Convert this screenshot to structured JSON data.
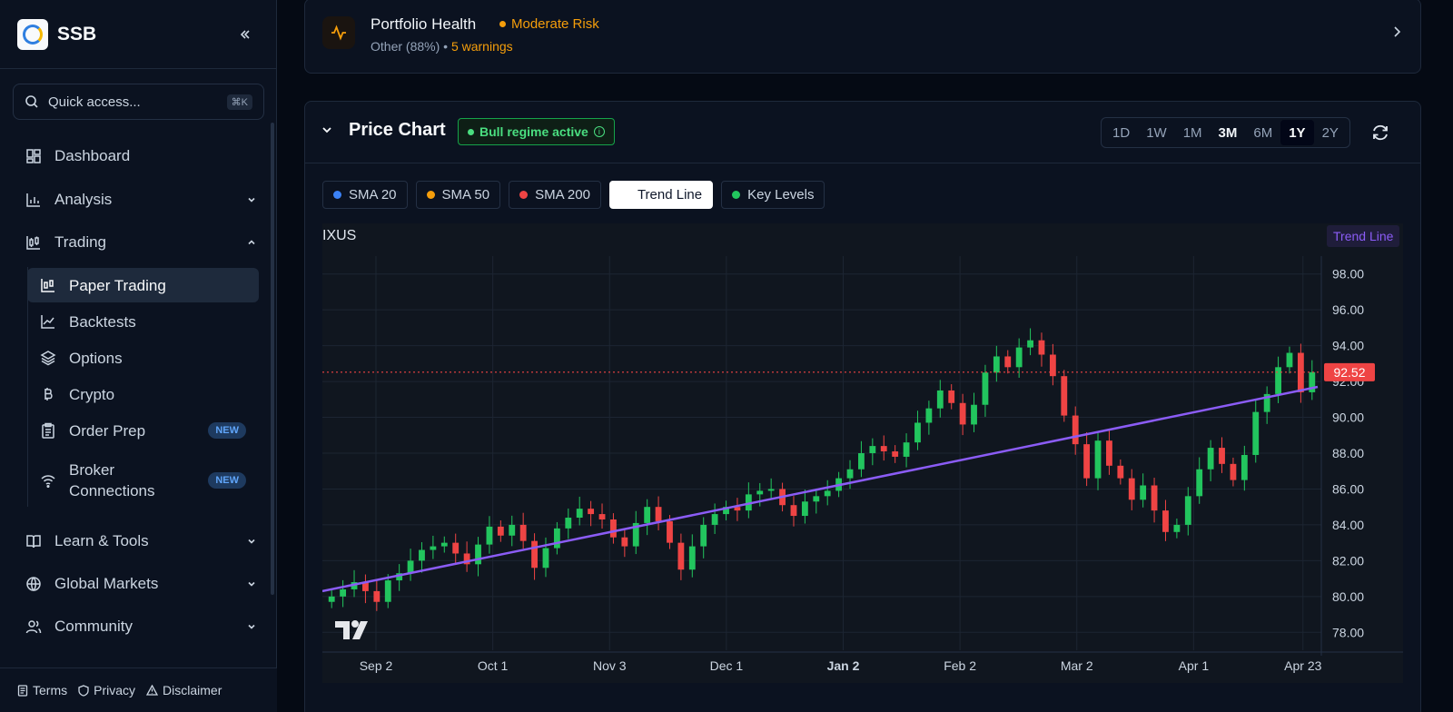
{
  "brand": {
    "name": "SSB"
  },
  "search": {
    "placeholder": "Quick access...",
    "shortcut": "⌘K"
  },
  "nav": {
    "dashboard": "Dashboard",
    "analysis": "Analysis",
    "trading": "Trading",
    "learn": "Learn & Tools",
    "global": "Global Markets",
    "community": "Community"
  },
  "trading_sub": {
    "paper": "Paper Trading",
    "backtests": "Backtests",
    "options": "Options",
    "crypto": "Crypto",
    "order_prep": "Order Prep",
    "broker": "Broker Connections",
    "new_badge": "NEW"
  },
  "footer": {
    "terms": "Terms",
    "privacy": "Privacy",
    "disclaimer": "Disclaimer"
  },
  "health": {
    "title": "Portfolio Health",
    "risk": "Moderate Risk",
    "sub": "Other (88%)",
    "sep": " • ",
    "warnings": "5 warnings"
  },
  "chart_card": {
    "title": "Price Chart",
    "regime": "Bull regime active",
    "timeframes": [
      "1D",
      "1W",
      "1M",
      "3M",
      "6M",
      "1Y",
      "2Y"
    ],
    "active_timeframe": "1Y",
    "overlays": [
      {
        "label": "SMA 20",
        "color": "#3b82f6",
        "on": false
      },
      {
        "label": "SMA 50",
        "color": "#f59e0b",
        "on": false
      },
      {
        "label": "SMA 200",
        "color": "#ef4444",
        "on": false
      },
      {
        "label": "Trend Line",
        "color": "#ffffff",
        "on": true
      },
      {
        "label": "Key Levels",
        "color": "#22c55e",
        "on": false
      }
    ]
  },
  "chart_data": {
    "type": "candlestick",
    "symbol": "IXUS",
    "legend_tag": "Trend Line",
    "last_price": "92.52",
    "ylim": [
      77,
      99
    ],
    "y_ticks": [
      "78.00",
      "80.00",
      "82.00",
      "84.00",
      "86.00",
      "88.00",
      "90.00",
      "92.00",
      "94.00",
      "96.00",
      "98.00"
    ],
    "x_ticks": [
      "Sep 2",
      "Oct 1",
      "Nov 3",
      "Dec 1",
      "Jan 2",
      "Feb 2",
      "Mar 2",
      "Apr 1",
      "Apr 23"
    ],
    "trend_line": {
      "start": 80.3,
      "end": 91.7
    },
    "closes": [
      80.0,
      80.4,
      80.8,
      80.3,
      79.7,
      80.9,
      81.3,
      82.0,
      82.6,
      82.8,
      83.0,
      82.4,
      81.8,
      82.9,
      83.9,
      83.4,
      84.0,
      83.1,
      81.6,
      82.7,
      83.8,
      84.4,
      84.9,
      84.6,
      84.3,
      83.3,
      82.8,
      84.1,
      85.0,
      84.2,
      83.0,
      81.5,
      82.8,
      84.0,
      84.6,
      85.0,
      84.8,
      85.7,
      85.9,
      86.0,
      85.1,
      84.5,
      85.3,
      85.6,
      85.9,
      86.6,
      87.1,
      88.0,
      88.4,
      88.1,
      87.8,
      88.6,
      89.7,
      90.5,
      91.5,
      90.8,
      89.6,
      90.7,
      92.5,
      93.4,
      92.8,
      93.9,
      94.3,
      93.5,
      92.3,
      90.1,
      88.5,
      86.6,
      88.7,
      87.3,
      86.6,
      85.4,
      86.2,
      84.8,
      83.6,
      84.0,
      85.6,
      87.1,
      88.3,
      87.4,
      86.5,
      87.9,
      90.3,
      91.3,
      92.8,
      93.6,
      91.4,
      92.52
    ],
    "candle_colors": {
      "up": "#22c55e",
      "down": "#ef4444"
    },
    "trend_color": "#8b5cf6",
    "grid": true
  }
}
